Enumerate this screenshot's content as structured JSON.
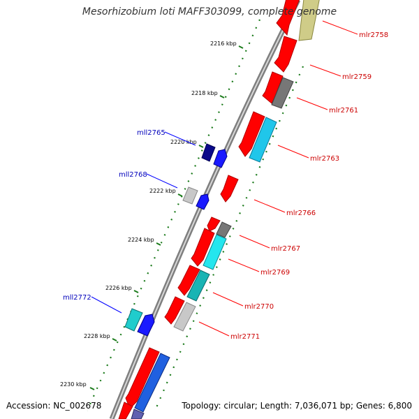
{
  "title": "Mesorhizobium loti MAFF303099, complete genome",
  "footer": {
    "accession": "Accession: NC_002678",
    "summary": "Topology: circular; Length: 7,036,071 bp; Genes: 6,800"
  },
  "colors": {
    "backbone": "#7f7f7f",
    "tick": "#1a7a1a",
    "forward_label": "#cc0000",
    "reverse_label": "#0000bb"
  },
  "kbp_ticks": [
    "2216 kbp",
    "2218 kbp",
    "2220 kbp",
    "2222 kbp",
    "2224 kbp",
    "2226 kbp",
    "2228 kbp",
    "2230 kbp"
  ],
  "genes": [
    {
      "name": "mlr2758",
      "strand": "forward"
    },
    {
      "name": "mlr2759",
      "strand": "forward"
    },
    {
      "name": "mlr2761",
      "strand": "forward"
    },
    {
      "name": "mlr2763",
      "strand": "forward"
    },
    {
      "name": "mll2765",
      "strand": "reverse"
    },
    {
      "name": "mll2768",
      "strand": "reverse"
    },
    {
      "name": "mlr2766",
      "strand": "forward"
    },
    {
      "name": "mlr2767",
      "strand": "forward"
    },
    {
      "name": "mlr2769",
      "strand": "forward"
    },
    {
      "name": "mlr2770",
      "strand": "forward"
    },
    {
      "name": "mll2772",
      "strand": "reverse"
    },
    {
      "name": "mlr2771",
      "strand": "forward"
    }
  ]
}
